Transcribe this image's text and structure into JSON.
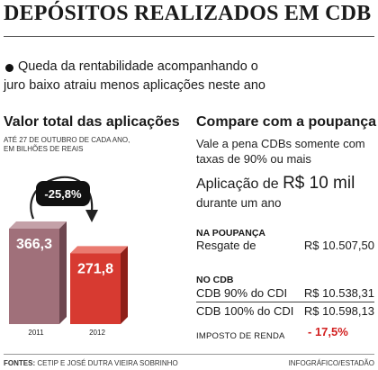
{
  "title": "DEPÓSITOS REALIZADOS EM CDB",
  "subtitle_l1": "Queda da rentabilidade acompanhando o",
  "subtitle_l2": "juro baixo atraiu menos aplicações neste ano",
  "colors": {
    "bar_2011": "#a0707a",
    "bar_2012": "#d73a31",
    "highlight": "#d21f1f"
  },
  "chart_data": {
    "type": "bar",
    "title": "Valor total das aplicações",
    "note_l1": "ATÉ 27 DE OUTUBRO DE CADA ANO,",
    "note_l2": "EM BILHÕES DE REAIS",
    "categories": [
      "2011",
      "2012"
    ],
    "values": [
      366.3,
      271.8
    ],
    "value_labels": [
      "366,3",
      "271,8"
    ],
    "change_label": "-25,8%",
    "ylim": [
      0,
      366.3
    ]
  },
  "compare": {
    "title": "Compare com a poupança",
    "text_l1": "Vale a pena CDBs somente com",
    "text_l2": "taxas de 90% ou mais",
    "app_prefix": "Aplicação de",
    "app_value": "R$ 10 mil",
    "app_suffix": "durante um ano",
    "poupanca_header": "NA POUPANÇA",
    "poupanca_label": "Resgate de",
    "poupanca_value": "R$ 10.507,50",
    "cdb_header": "NO CDB",
    "cdb_rows": [
      {
        "label": "CDB 90% do CDI",
        "value": "R$ 10.538,31"
      },
      {
        "label": "CDB 100% do CDI",
        "value": "R$ 10.598,13"
      }
    ],
    "tax_label": "IMPOSTO DE RENDA",
    "tax_value": "- 17,5%"
  },
  "footer": {
    "sources_label": "FONTES:",
    "sources_text": "CETIP E JOSÉ DUTRA VIEIRA SOBRINHO",
    "credit": "INFOGRÁFICO/ESTADÃO"
  }
}
